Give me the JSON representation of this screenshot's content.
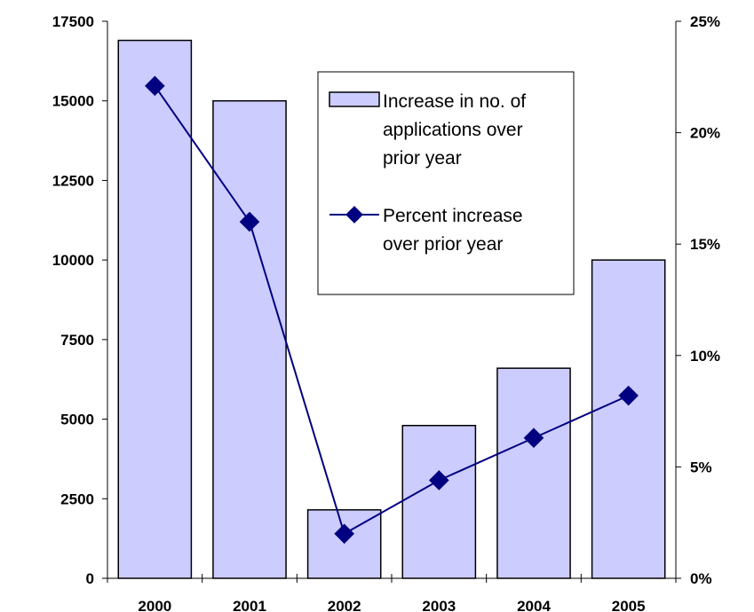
{
  "chart_data": {
    "type": "bar",
    "categories": [
      "2000",
      "2001",
      "2002",
      "2003",
      "2004",
      "2005"
    ],
    "series": [
      {
        "name": "Increase in no. of applications over prior year",
        "kind": "bar",
        "axis": "left",
        "values": [
          16900,
          15000,
          2150,
          4800,
          6600,
          10000
        ],
        "color": "#ccccff"
      },
      {
        "name": "Percent increase over prior year",
        "kind": "line",
        "axis": "right",
        "values": [
          0.221,
          0.16,
          0.02,
          0.044,
          0.063,
          0.082
        ],
        "color": "#000080"
      }
    ],
    "y_left": {
      "min": 0,
      "max": 17500,
      "ticks": [
        0,
        2500,
        5000,
        7500,
        10000,
        12500,
        15000,
        17500
      ],
      "tick_labels": [
        "0",
        "2500",
        "5000",
        "7500",
        "10000",
        "12500",
        "15000",
        "17500"
      ]
    },
    "y_right": {
      "min": 0,
      "max": 0.25,
      "ticks": [
        0,
        0.05,
        0.1,
        0.15,
        0.2,
        0.25
      ],
      "tick_labels": [
        "0%",
        "5%",
        "10%",
        "15%",
        "20%",
        "25%"
      ]
    },
    "legend": {
      "position": "top-right",
      "entries": [
        {
          "lines": [
            "Increase in no. of",
            "applications over",
            "prior year"
          ]
        },
        {
          "lines": [
            "Percent increase",
            "over prior year"
          ]
        }
      ]
    },
    "title": "",
    "xlabel": "",
    "ylabel": "",
    "grid": false
  }
}
